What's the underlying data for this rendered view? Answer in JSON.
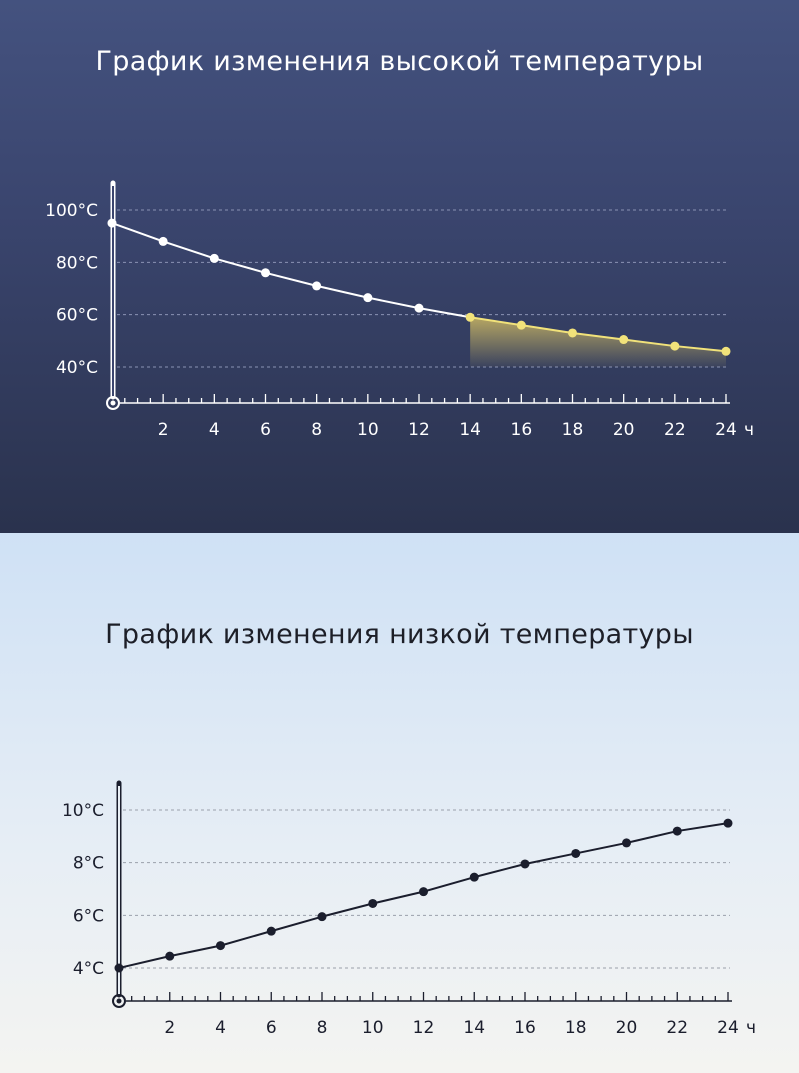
{
  "chart_data": [
    {
      "type": "line",
      "title": "График изменения высокой температуры",
      "x_unit": "ч",
      "x_ticks": [
        "2",
        "4",
        "6",
        "8",
        "10",
        "12",
        "14",
        "16",
        "18",
        "20",
        "22",
        "24"
      ],
      "y_ticks": [
        "100°C",
        "80°C",
        "60°C",
        "40°C"
      ],
      "y_tick_values": [
        100,
        80,
        60,
        40
      ],
      "ylim": [
        40,
        100
      ],
      "xlim": [
        0,
        24
      ],
      "grid": true,
      "x": [
        0,
        2,
        4,
        6,
        8,
        10,
        12,
        14,
        16,
        18,
        20,
        22,
        24
      ],
      "y": [
        95,
        88,
        81.5,
        76,
        71,
        66.5,
        62.5,
        59,
        56,
        53,
        50.5,
        48,
        46
      ],
      "highlight_from_x": 14,
      "colors": {
        "line": "#ffffff",
        "highlight": "#f1e27a",
        "grid": "#8a93b4",
        "axis": "#ffffff",
        "text": "#ffffff"
      }
    },
    {
      "type": "line",
      "title": "График изменения низкой температуры",
      "x_unit": "ч",
      "x_ticks": [
        "2",
        "4",
        "6",
        "8",
        "10",
        "12",
        "14",
        "16",
        "18",
        "20",
        "22",
        "24"
      ],
      "y_ticks": [
        "10°C",
        "8°C",
        "6°C",
        "4°C"
      ],
      "y_tick_values": [
        10,
        8,
        6,
        4
      ],
      "ylim": [
        4,
        10
      ],
      "xlim": [
        0,
        24
      ],
      "grid": true,
      "x": [
        0,
        2,
        4,
        6,
        8,
        10,
        12,
        14,
        16,
        18,
        20,
        22,
        24
      ],
      "y": [
        4,
        4.45,
        4.85,
        5.4,
        5.95,
        6.45,
        6.9,
        7.45,
        7.95,
        8.35,
        8.75,
        9.2,
        9.5
      ],
      "colors": {
        "line": "#1b1e2d",
        "grid": "#9aa0aa",
        "axis": "#1b1e2d",
        "text": "#1b1e2d"
      }
    }
  ]
}
